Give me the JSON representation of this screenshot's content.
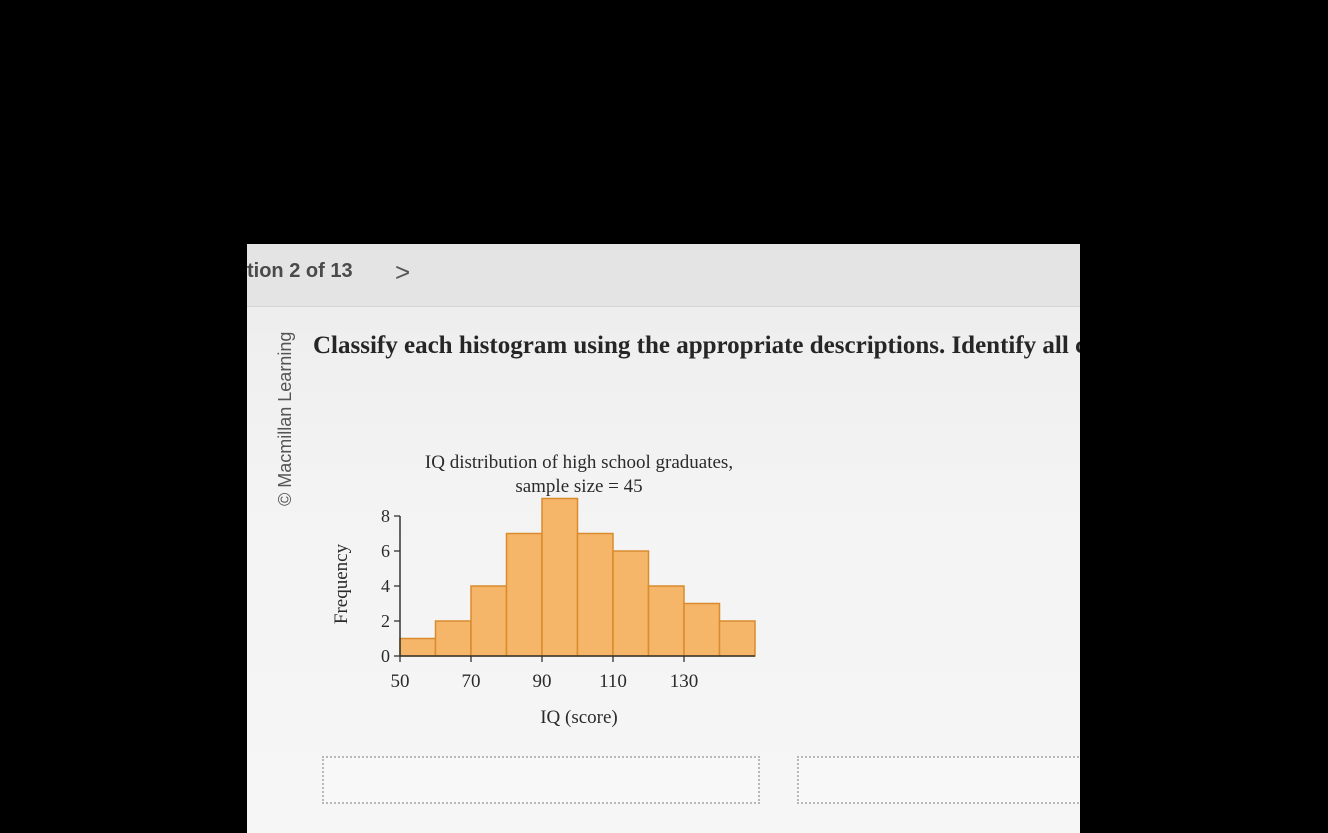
{
  "header": {
    "question_counter": "tion 2 of 13",
    "next_glyph": ">"
  },
  "publisher": "© Macmillan Learning",
  "prompt": "Classify each histogram using the appropriate descriptions. Identify all c",
  "colors": {
    "bar_fill": "#f5b669",
    "bar_stroke": "#d98b2e",
    "axis": "#333333"
  },
  "chart_data": {
    "type": "bar",
    "title": "IQ distribution of high school graduates,",
    "subtitle": "sample size = 45",
    "xlabel": "IQ (score)",
    "ylabel": "Frequency",
    "bin_width": 10,
    "bins": [
      {
        "start": 50,
        "end": 60,
        "count": 1
      },
      {
        "start": 60,
        "end": 70,
        "count": 2
      },
      {
        "start": 70,
        "end": 80,
        "count": 4
      },
      {
        "start": 80,
        "end": 90,
        "count": 7
      },
      {
        "start": 90,
        "end": 100,
        "count": 9
      },
      {
        "start": 100,
        "end": 110,
        "count": 7
      },
      {
        "start": 110,
        "end": 120,
        "count": 6
      },
      {
        "start": 120,
        "end": 130,
        "count": 4
      },
      {
        "start": 130,
        "end": 140,
        "count": 3
      },
      {
        "start": 140,
        "end": 150,
        "count": 2
      }
    ],
    "x_ticks": [
      50,
      70,
      90,
      110,
      130
    ],
    "y_ticks": [
      0,
      2,
      4,
      6,
      8
    ],
    "xlim": [
      50,
      150
    ],
    "ylim": [
      0,
      9
    ],
    "grid": false
  }
}
